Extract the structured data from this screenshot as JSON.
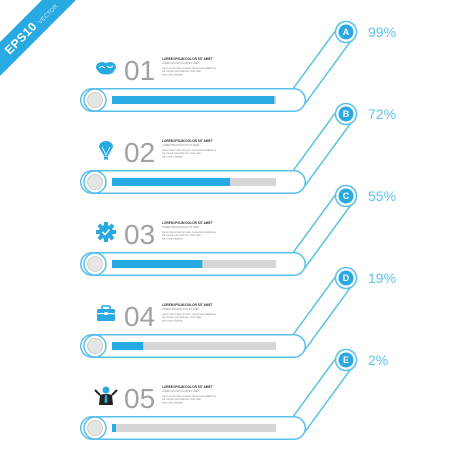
{
  "badge": {
    "main": "EPS10",
    "sub": "VECTOR"
  },
  "colors": {
    "accent": "#29a9e1",
    "track": "#d6d6d6",
    "outline": "#5bc0eb"
  },
  "steps": [
    {
      "number": "01",
      "letter": "A",
      "percent_label": "99%",
      "progress": 0.99,
      "icon": "brain-icon",
      "title": "LOREM IPSUM DOLOR SIT AMET",
      "subtitle": "LOREM IPSUM DOLOR SIT AMET",
      "text": [
        "Lorem ipsum dolor sit amet, consectetur adipiscing",
        "elit. Aenean sed diam dui. Cras vitae",
        "ante rutrum facilisis."
      ]
    },
    {
      "number": "02",
      "letter": "B",
      "percent_label": "72%",
      "progress": 0.72,
      "icon": "lightbulb-icon",
      "title": "LOREM IPSUM DOLOR SIT AMET",
      "subtitle": "LOREM IPSUM DOLOR SIT AMET",
      "text": [
        "Lorem ipsum dolor sit amet, consectetur adipiscing",
        "elit. Aenean sed diam dui. Cras vitae",
        "ante rutrum facilisis."
      ]
    },
    {
      "number": "03",
      "letter": "C",
      "percent_label": "55%",
      "progress": 0.55,
      "icon": "gear-check-icon",
      "title": "LOREM IPSUM DOLOR SIT AMET",
      "subtitle": "LOREM IPSUM DOLOR SIT AMET",
      "text": [
        "Lorem ipsum dolor sit amet, consectetur adipiscing",
        "elit. Aenean sed diam dui. Cras vitae",
        "ante rutrum facilisis."
      ]
    },
    {
      "number": "04",
      "letter": "D",
      "percent_label": "19%",
      "progress": 0.19,
      "icon": "briefcase-icon",
      "title": "LOREM IPSUM DOLOR SIT AMET",
      "subtitle": "LOREM IPSUM DOLOR SIT AMET",
      "text": [
        "Lorem ipsum dolor sit amet, consectetur adipiscing",
        "elit. Aenean sed diam dui. Cras vitae",
        "ante rutrum facilisis."
      ]
    },
    {
      "number": "05",
      "letter": "E",
      "percent_label": "2%",
      "progress": 0.02,
      "icon": "businessman-icon",
      "title": "LOREM IPSUM DOLOR SIT AMET",
      "subtitle": "LOREM IPSUM DOLOR SIT AMET",
      "text": [
        "Lorem ipsum dolor sit amet, consectetur adipiscing",
        "elit. Aenean sed diam dui. Cras vitae",
        "ante rutrum facilisis."
      ]
    }
  ]
}
